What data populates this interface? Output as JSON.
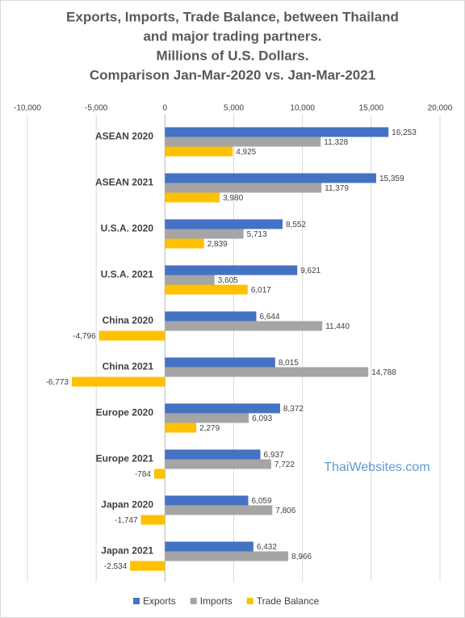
{
  "chart_data": {
    "type": "hbar",
    "title": [
      "Exports, Imports, Trade Balance, between Thailand",
      "and major trading partners.",
      "Millions of U.S. Dollars.",
      "Comparison Jan-Mar-2020 vs. Jan-Mar-2021"
    ],
    "categories": [
      "ASEAN 2020",
      "ASEAN 2021",
      "U.S.A. 2020",
      "U.S.A. 2021",
      "China 2020",
      "China 2021",
      "Europe 2020",
      "Europe 2021",
      "Japan 2020",
      "Japan 2021"
    ],
    "series": [
      {
        "name": "Exports",
        "color": "#4472c4",
        "values": [
          16253,
          15359,
          8552,
          9621,
          6644,
          8015,
          8372,
          6937,
          6059,
          6432
        ],
        "value_labels": [
          "16,253",
          "15,359",
          "8,552",
          "9,621",
          "6,644",
          "8,015",
          "8,372",
          "6,937",
          "6,059",
          "6,432"
        ]
      },
      {
        "name": "Imports",
        "color": "#a5a5a5",
        "values": [
          11328,
          11379,
          5713,
          3605,
          11440,
          14788,
          6093,
          7722,
          7806,
          8966
        ],
        "value_labels": [
          "11,328",
          "11,379",
          "5,713",
          "3,605",
          "11,440",
          "14,788",
          "6,093",
          "7,722",
          "7,806",
          "8,966"
        ]
      },
      {
        "name": "Trade Balance",
        "color": "#ffc000",
        "values": [
          4925,
          3980,
          2839,
          6017,
          -4796,
          -6773,
          2279,
          -784,
          -1747,
          -2534
        ],
        "value_labels": [
          "4,925",
          "3,980",
          "2,839",
          "6,017",
          "-4,796",
          "-6,773",
          "2,279",
          "-784",
          "-1,747",
          "-2,534"
        ]
      }
    ],
    "xlim": [
      -10000,
      20000
    ],
    "xticks": [
      {
        "value": -10000,
        "label": "-10,000"
      },
      {
        "value": -5000,
        "label": "-5,000"
      },
      0,
      {
        "value": 5000,
        "label": "5,000"
      },
      {
        "value": 10000,
        "label": "10,000"
      },
      {
        "value": 15000,
        "label": "15,000"
      },
      {
        "value": 20000,
        "label": "20,000"
      }
    ],
    "grid": true,
    "legend": "bottom",
    "watermark": "ThaiWebsites.com"
  }
}
